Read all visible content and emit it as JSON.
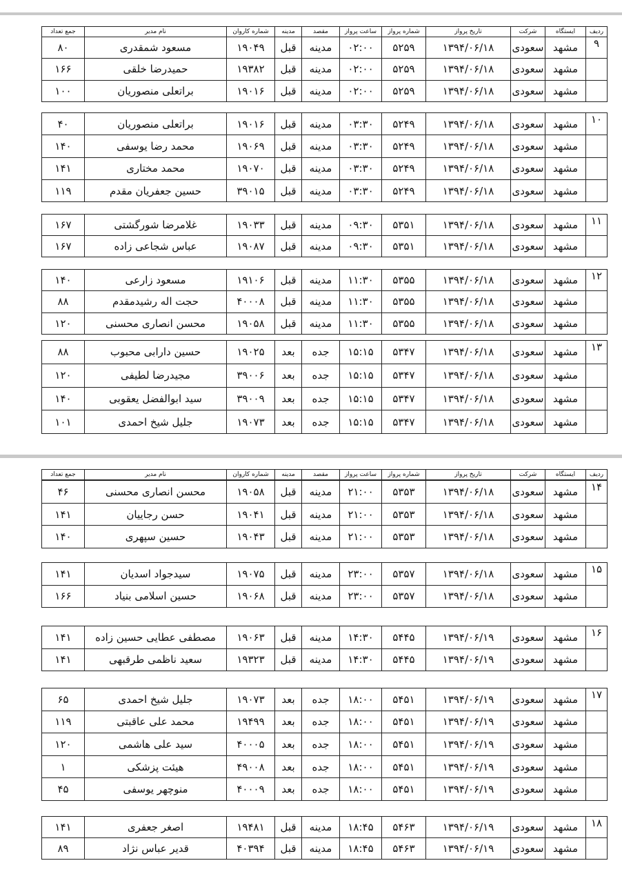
{
  "headers": [
    "ردیف",
    "ایستگاه",
    "شرکت",
    "تاریخ پرواز",
    "شماره پرواز",
    "ساعت پرواز",
    "مقصد",
    "مدینه",
    "شماره کاروان",
    "نام مدیر",
    "جمع تعداد"
  ],
  "pages": [
    {
      "groups": [
        {
          "no": "۹",
          "rows": [
            [
              "مشهد",
              "سعودی",
              "۱۳۹۴/۰۶/۱۸",
              "۵۲۵۹",
              "۰۲:۰۰",
              "مدینه",
              "قبل",
              "۱۹۰۴۹",
              "مسعود  شمقدری",
              "۸۰"
            ],
            [
              "مشهد",
              "سعودی",
              "۱۳۹۴/۰۶/۱۸",
              "۵۲۵۹",
              "۰۲:۰۰",
              "مدینه",
              "قبل",
              "۱۹۳۸۲",
              "حمیدرضا  خلقی",
              "۱۶۶"
            ],
            [
              "مشهد",
              "سعودی",
              "۱۳۹۴/۰۶/۱۸",
              "۵۲۵۹",
              "۰۲:۰۰",
              "مدینه",
              "قبل",
              "۱۹۰۱۶",
              "براتعلی  منصوریان",
              "۱۰۰"
            ]
          ]
        },
        {
          "no": "۱۰",
          "rows": [
            [
              "مشهد",
              "سعودی",
              "۱۳۹۴/۰۶/۱۸",
              "۵۲۴۹",
              "۰۳:۳۰",
              "مدینه",
              "قبل",
              "۱۹۰۱۶",
              "براتعلی  منصوریان",
              "۴۰"
            ],
            [
              "مشهد",
              "سعودی",
              "۱۳۹۴/۰۶/۱۸",
              "۵۲۴۹",
              "۰۳:۳۰",
              "مدینه",
              "قبل",
              "۱۹۰۶۹",
              "محمد رضا  یوسفی",
              "۱۴۰"
            ],
            [
              "مشهد",
              "سعودی",
              "۱۳۹۴/۰۶/۱۸",
              "۵۲۴۹",
              "۰۳:۳۰",
              "مدینه",
              "قبل",
              "۱۹۰۷۰",
              "محمد  مختاری",
              "۱۴۱"
            ],
            [
              "مشهد",
              "سعودی",
              "۱۳۹۴/۰۶/۱۸",
              "۵۲۴۹",
              "۰۳:۳۰",
              "مدینه",
              "قبل",
              "۳۹۰۱۵",
              "حسین  جعفریان مقدم",
              "۱۱۹"
            ]
          ]
        },
        {
          "no": "۱۱",
          "rows": [
            [
              "مشهد",
              "سعودی",
              "۱۳۹۴/۰۶/۱۸",
              "۵۳۵۱",
              "۰۹:۳۰",
              "مدینه",
              "قبل",
              "۱۹۰۳۳",
              "غلامرضا  شورگشتی",
              "۱۶۷"
            ],
            [
              "مشهد",
              "سعودی",
              "۱۳۹۴/۰۶/۱۸",
              "۵۳۵۱",
              "۰۹:۳۰",
              "مدینه",
              "قبل",
              "۱۹۰۸۷",
              "عباس  شجاعی زاده",
              "۱۶۷"
            ]
          ]
        },
        {
          "no": "۱۲",
          "rows": [
            [
              "مشهد",
              "سعودی",
              "۱۳۹۴/۰۶/۱۸",
              "۵۳۵۵",
              "۱۱:۳۰",
              "مدینه",
              "قبل",
              "۱۹۱۰۶",
              "مسعود  زارعی",
              "۱۴۰"
            ],
            [
              "مشهد",
              "سعودی",
              "۱۳۹۴/۰۶/۱۸",
              "۵۳۵۵",
              "۱۱:۳۰",
              "مدینه",
              "قبل",
              "۴۰۰۰۸",
              "حجت اله  رشیدمقدم",
              "۸۸"
            ],
            [
              "مشهد",
              "سعودی",
              "۱۳۹۴/۰۶/۱۸",
              "۵۳۵۵",
              "۱۱:۳۰",
              "مدینه",
              "قبل",
              "۱۹۰۵۸",
              "محسن  انصاری محسنی",
              "۱۲۰"
            ]
          ]
        },
        {
          "no": "۱۳",
          "rows": [
            [
              "مشهد",
              "سعودی",
              "۱۳۹۴/۰۶/۱۸",
              "۵۳۴۷",
              "۱۵:۱۵",
              "جده",
              "بعد",
              "۱۹۰۲۵",
              "حسین  دارابی محبوب",
              "۸۸"
            ],
            [
              "مشهد",
              "سعودی",
              "۱۳۹۴/۰۶/۱۸",
              "۵۳۴۷",
              "۱۵:۱۵",
              "جده",
              "بعد",
              "۳۹۰۰۶",
              "مجیدرضا  لطیفی",
              "۱۲۰"
            ],
            [
              "مشهد",
              "سعودی",
              "۱۳۹۴/۰۶/۱۸",
              "۵۳۴۷",
              "۱۵:۱۵",
              "جده",
              "بعد",
              "۳۹۰۰۹",
              "سید  ابوالفضل  یعقوبی",
              "۱۴۰"
            ],
            [
              "مشهد",
              "سعودی",
              "۱۳۹۴/۰۶/۱۸",
              "۵۳۴۷",
              "۱۵:۱۵",
              "جده",
              "بعد",
              "۱۹۰۷۳",
              "جلیل  شیخ احمدی",
              "۱۰۱"
            ]
          ]
        }
      ]
    },
    {
      "groups": [
        {
          "no": "۱۴",
          "rows": [
            [
              "مشهد",
              "سعودی",
              "۱۳۹۴/۰۶/۱۸",
              "۵۳۵۳",
              "۲۱:۰۰",
              "مدینه",
              "قبل",
              "۱۹۰۵۸",
              "محسن  انصاری محسنی",
              "۴۶"
            ],
            [
              "مشهد",
              "سعودی",
              "۱۳۹۴/۰۶/۱۸",
              "۵۳۵۳",
              "۲۱:۰۰",
              "مدینه",
              "قبل",
              "۱۹۰۴۱",
              "حسن  رجاییان",
              "۱۴۱"
            ],
            [
              "مشهد",
              "سعودی",
              "۱۳۹۴/۰۶/۱۸",
              "۵۳۵۳",
              "۲۱:۰۰",
              "مدینه",
              "قبل",
              "۱۹۰۴۳",
              "حسین  سپهری",
              "۱۴۰"
            ]
          ]
        },
        {
          "no": "۱۵",
          "rows": [
            [
              "مشهد",
              "سعودی",
              "۱۳۹۴/۰۶/۱۸",
              "۵۳۵۷",
              "۲۳:۰۰",
              "مدینه",
              "قبل",
              "۱۹۰۷۵",
              "سیدجواد  اسدیان",
              "۱۴۱"
            ],
            [
              "مشهد",
              "سعودی",
              "۱۳۹۴/۰۶/۱۸",
              "۵۳۵۷",
              "۲۳:۰۰",
              "مدینه",
              "قبل",
              "۱۹۰۶۸",
              "حسین  اسلامی بنیاد",
              "۱۶۶"
            ]
          ]
        },
        {
          "no": "۱۶",
          "rows": [
            [
              "مشهد",
              "سعودی",
              "۱۳۹۴/۰۶/۱۹",
              "۵۴۴۵",
              "۱۴:۳۰",
              "مدینه",
              "قبل",
              "۱۹۰۶۳",
              "مصطفی  عطایی حسین زاده",
              "۱۴۱"
            ],
            [
              "مشهد",
              "سعودی",
              "۱۳۹۴/۰۶/۱۹",
              "۵۴۴۵",
              "۱۴:۳۰",
              "مدینه",
              "قبل",
              "۱۹۳۲۳",
              "سعید  ناظمی طرقبهی",
              "۱۴۱"
            ]
          ]
        },
        {
          "no": "۱۷",
          "rows": [
            [
              "مشهد",
              "سعودی",
              "۱۳۹۴/۰۶/۱۹",
              "۵۴۵۱",
              "۱۸:۰۰",
              "جده",
              "بعد",
              "۱۹۰۷۳",
              "جلیل  شیخ احمدی",
              "۶۵"
            ],
            [
              "مشهد",
              "سعودی",
              "۱۳۹۴/۰۶/۱۹",
              "۵۴۵۱",
              "۱۸:۰۰",
              "جده",
              "بعد",
              "۱۹۴۹۹",
              "محمد علی  عاقبتی",
              "۱۱۹"
            ],
            [
              "مشهد",
              "سعودی",
              "۱۳۹۴/۰۶/۱۹",
              "۵۴۵۱",
              "۱۸:۰۰",
              "جده",
              "بعد",
              "۴۰۰۰۵",
              "سید علی  هاشمی",
              "۱۲۰"
            ],
            [
              "مشهد",
              "سعودی",
              "۱۳۹۴/۰۶/۱۹",
              "۵۴۵۱",
              "۱۸:۰۰",
              "جده",
              "بعد",
              "۴۹۰۰۸",
              "هیئت پزشکی",
              "۱"
            ],
            [
              "مشهد",
              "سعودی",
              "۱۳۹۴/۰۶/۱۹",
              "۵۴۵۱",
              "۱۸:۰۰",
              "جده",
              "بعد",
              "۴۰۰۰۹",
              "منوچهر  یوسفی",
              "۴۵"
            ]
          ]
        },
        {
          "no": "۱۸",
          "rows": [
            [
              "مشهد",
              "سعودی",
              "۱۳۹۴/۰۶/۱۹",
              "۵۴۶۳",
              "۱۸:۴۵",
              "مدینه",
              "قبل",
              "۱۹۴۸۱",
              "اصغر  جعفری",
              "۱۴۱"
            ],
            [
              "مشهد",
              "سعودی",
              "۱۳۹۴/۰۶/۱۹",
              "۵۴۶۳",
              "۱۸:۴۵",
              "مدینه",
              "قبل",
              "۴۰۳۹۴",
              "قدیر  عباس نژاد",
              "۸۹"
            ]
          ]
        }
      ]
    }
  ]
}
